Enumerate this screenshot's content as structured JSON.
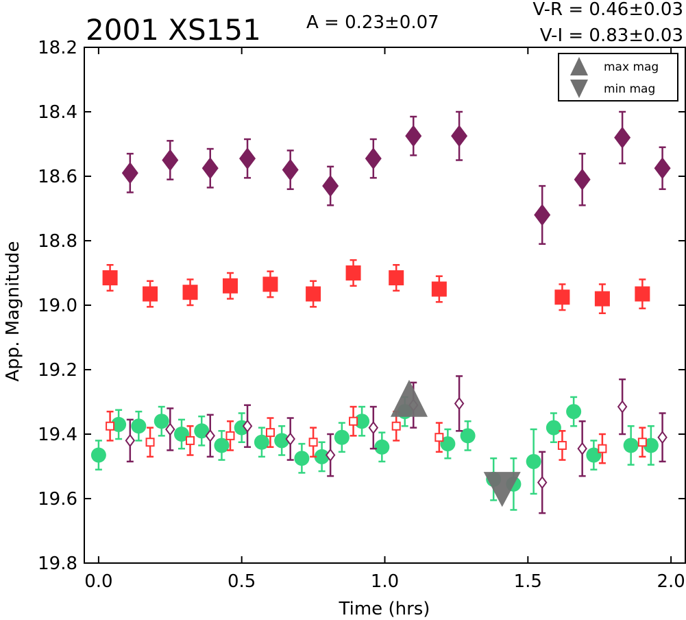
{
  "chart_data": {
    "type": "scatter",
    "title": "2001 XS151",
    "annotations": {
      "amplitude": "A  = 0.23±0.07",
      "v_r": "V-R = 0.46±0.03",
      "v_i": "V-I  = 0.83±0.03"
    },
    "xlabel": "Time (hrs)",
    "ylabel": "App. Magnitude",
    "xlim": [
      -0.05,
      2.05
    ],
    "ylim": [
      18.2,
      19.8
    ],
    "y_inverted": true,
    "xticks": [
      "0.0",
      "0.5",
      "1.0",
      "1.5",
      "2.0"
    ],
    "yticks": [
      "18.2",
      "18.4",
      "18.6",
      "18.8",
      "19.0",
      "19.2",
      "19.4",
      "19.6",
      "19.8"
    ],
    "grid": false,
    "legend_position": "top-right",
    "legend": [
      {
        "label": "max mag",
        "marker": "triangle-up"
      },
      {
        "label": "min mag",
        "marker": "triangle-down"
      }
    ],
    "colors": {
      "purple": "#7b1f5c",
      "red": "#ff3333",
      "green": "#33d681",
      "gray": "#707070"
    },
    "series": [
      {
        "marker": "diamond-filled",
        "color": "#7b1f5c",
        "points": [
          {
            "x": 0.11,
            "y": 18.59,
            "err": 0.06
          },
          {
            "x": 0.25,
            "y": 18.55,
            "err": 0.06
          },
          {
            "x": 0.39,
            "y": 18.575,
            "err": 0.06
          },
          {
            "x": 0.52,
            "y": 18.545,
            "err": 0.06
          },
          {
            "x": 0.67,
            "y": 18.58,
            "err": 0.06
          },
          {
            "x": 0.81,
            "y": 18.63,
            "err": 0.06
          },
          {
            "x": 0.96,
            "y": 18.545,
            "err": 0.06
          },
          {
            "x": 1.1,
            "y": 18.475,
            "err": 0.06
          },
          {
            "x": 1.26,
            "y": 18.475,
            "err": 0.075
          },
          {
            "x": 1.55,
            "y": 18.72,
            "err": 0.09
          },
          {
            "x": 1.69,
            "y": 18.61,
            "err": 0.08
          },
          {
            "x": 1.83,
            "y": 18.48,
            "err": 0.08
          },
          {
            "x": 1.97,
            "y": 18.575,
            "err": 0.065
          }
        ]
      },
      {
        "marker": "square-filled",
        "color": "#ff3333",
        "points": [
          {
            "x": 0.04,
            "y": 18.915,
            "err": 0.04
          },
          {
            "x": 0.18,
            "y": 18.965,
            "err": 0.04
          },
          {
            "x": 0.32,
            "y": 18.96,
            "err": 0.04
          },
          {
            "x": 0.46,
            "y": 18.94,
            "err": 0.04
          },
          {
            "x": 0.6,
            "y": 18.935,
            "err": 0.04
          },
          {
            "x": 0.75,
            "y": 18.965,
            "err": 0.04
          },
          {
            "x": 0.89,
            "y": 18.9,
            "err": 0.04
          },
          {
            "x": 1.04,
            "y": 18.915,
            "err": 0.04
          },
          {
            "x": 1.19,
            "y": 18.95,
            "err": 0.04
          },
          {
            "x": 1.62,
            "y": 18.975,
            "err": 0.04
          },
          {
            "x": 1.76,
            "y": 18.98,
            "err": 0.045
          },
          {
            "x": 1.9,
            "y": 18.965,
            "err": 0.045
          }
        ]
      },
      {
        "marker": "circle-filled",
        "color": "#33d681",
        "points": [
          {
            "x": 0.0,
            "y": 19.465,
            "err": 0.045
          },
          {
            "x": 0.07,
            "y": 19.37,
            "err": 0.045
          },
          {
            "x": 0.14,
            "y": 19.375,
            "err": 0.045
          },
          {
            "x": 0.22,
            "y": 19.36,
            "err": 0.045
          },
          {
            "x": 0.29,
            "y": 19.4,
            "err": 0.045
          },
          {
            "x": 0.36,
            "y": 19.39,
            "err": 0.045
          },
          {
            "x": 0.43,
            "y": 19.435,
            "err": 0.045
          },
          {
            "x": 0.5,
            "y": 19.38,
            "err": 0.045
          },
          {
            "x": 0.57,
            "y": 19.425,
            "err": 0.045
          },
          {
            "x": 0.64,
            "y": 19.42,
            "err": 0.045
          },
          {
            "x": 0.71,
            "y": 19.475,
            "err": 0.045
          },
          {
            "x": 0.78,
            "y": 19.47,
            "err": 0.045
          },
          {
            "x": 0.85,
            "y": 19.41,
            "err": 0.045
          },
          {
            "x": 0.92,
            "y": 19.36,
            "err": 0.045
          },
          {
            "x": 0.99,
            "y": 19.44,
            "err": 0.045
          },
          {
            "x": 1.07,
            "y": 19.33,
            "err": 0.045
          },
          {
            "x": 1.22,
            "y": 19.43,
            "err": 0.045
          },
          {
            "x": 1.29,
            "y": 19.405,
            "err": 0.045
          },
          {
            "x": 1.38,
            "y": 19.54,
            "err": 0.065
          },
          {
            "x": 1.45,
            "y": 19.555,
            "err": 0.08
          },
          {
            "x": 1.52,
            "y": 19.485,
            "err": 0.1
          },
          {
            "x": 1.59,
            "y": 19.38,
            "err": 0.045
          },
          {
            "x": 1.66,
            "y": 19.33,
            "err": 0.045
          },
          {
            "x": 1.73,
            "y": 19.465,
            "err": 0.045
          },
          {
            "x": 1.86,
            "y": 19.435,
            "err": 0.06
          },
          {
            "x": 1.93,
            "y": 19.435,
            "err": 0.06
          }
        ]
      },
      {
        "marker": "square-open",
        "color": "#ff3333",
        "points": [
          {
            "x": 0.04,
            "y": 19.375,
            "err": 0.045
          },
          {
            "x": 0.18,
            "y": 19.425,
            "err": 0.045
          },
          {
            "x": 0.32,
            "y": 19.42,
            "err": 0.045
          },
          {
            "x": 0.46,
            "y": 19.405,
            "err": 0.045
          },
          {
            "x": 0.6,
            "y": 19.395,
            "err": 0.045
          },
          {
            "x": 0.75,
            "y": 19.425,
            "err": 0.045
          },
          {
            "x": 0.89,
            "y": 19.36,
            "err": 0.045
          },
          {
            "x": 1.04,
            "y": 19.375,
            "err": 0.045
          },
          {
            "x": 1.19,
            "y": 19.41,
            "err": 0.045
          },
          {
            "x": 1.62,
            "y": 19.435,
            "err": 0.045
          },
          {
            "x": 1.76,
            "y": 19.445,
            "err": 0.045
          },
          {
            "x": 1.9,
            "y": 19.425,
            "err": 0.045
          }
        ]
      },
      {
        "marker": "diamond-open",
        "color": "#7b1f5c",
        "points": [
          {
            "x": 0.11,
            "y": 19.42,
            "err": 0.065
          },
          {
            "x": 0.25,
            "y": 19.385,
            "err": 0.065
          },
          {
            "x": 0.39,
            "y": 19.405,
            "err": 0.065
          },
          {
            "x": 0.52,
            "y": 19.375,
            "err": 0.065
          },
          {
            "x": 0.67,
            "y": 19.415,
            "err": 0.065
          },
          {
            "x": 0.81,
            "y": 19.465,
            "err": 0.065
          },
          {
            "x": 0.96,
            "y": 19.38,
            "err": 0.065
          },
          {
            "x": 1.1,
            "y": 19.31,
            "err": 0.07
          },
          {
            "x": 1.26,
            "y": 19.305,
            "err": 0.085
          },
          {
            "x": 1.55,
            "y": 19.55,
            "err": 0.095
          },
          {
            "x": 1.69,
            "y": 19.445,
            "err": 0.085
          },
          {
            "x": 1.83,
            "y": 19.315,
            "err": 0.085
          },
          {
            "x": 1.97,
            "y": 19.41,
            "err": 0.075
          }
        ]
      },
      {
        "marker": "triangle-up",
        "color": "#707070",
        "points": [
          {
            "x": 1.085,
            "y": 19.325
          }
        ]
      },
      {
        "marker": "triangle-down",
        "color": "#707070",
        "points": [
          {
            "x": 1.41,
            "y": 19.545
          }
        ]
      }
    ]
  }
}
